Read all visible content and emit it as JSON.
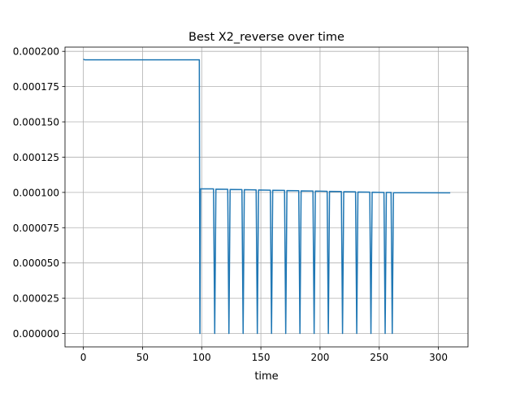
{
  "chart_data": {
    "type": "line",
    "title": "Best X2_reverse over time",
    "xlabel": "time",
    "ylabel": "",
    "xlim": [
      -15.5,
      325
    ],
    "ylim": [
      -9.5e-06,
      0.000203
    ],
    "x_ticks": [
      0,
      50,
      100,
      150,
      200,
      250,
      300
    ],
    "y_ticks": [
      0,
      2.5e-05,
      5e-05,
      7.5e-05,
      0.0001,
      0.000125,
      0.00015,
      0.000175,
      0.0002
    ],
    "x_tick_labels": [
      "0",
      "50",
      "100",
      "150",
      "200",
      "250",
      "300"
    ],
    "y_tick_labels": [
      "0.000000",
      "0.000025",
      "0.000050",
      "0.000075",
      "0.000100",
      "0.000125",
      "0.000150",
      "0.000175",
      "0.000200"
    ],
    "grid": true,
    "series": [
      {
        "color": "#1f77b4",
        "x": [
          0,
          1,
          98,
          98.5,
          99,
          100,
          110,
          111,
          112,
          122,
          123,
          124,
          134,
          135,
          136,
          146,
          147,
          148,
          158,
          159,
          160,
          170,
          171,
          172,
          182,
          183,
          184,
          194,
          195,
          196,
          206,
          207,
          208,
          218,
          219,
          220,
          230,
          231,
          232,
          242,
          243,
          244,
          254,
          255,
          256,
          260,
          261,
          262,
          310
        ],
        "y": [
          0.0001945,
          0.000194,
          0.000194,
          0,
          0.0001025,
          0.0001025,
          0.0001025,
          0,
          0.0001023,
          0.0001022,
          0,
          0.0001021,
          0.000102,
          0,
          0.0001019,
          0.0001018,
          0,
          0.0001017,
          0.0001016,
          0,
          0.0001015,
          0.0001014,
          0,
          0.0001013,
          0.0001012,
          0,
          0.0001011,
          0.000101,
          0,
          0.0001009,
          0.0001008,
          0,
          0.0001007,
          0.0001006,
          0,
          0.0001005,
          0.0001004,
          0,
          0.0001003,
          0.0001002,
          0,
          0.0001001,
          0.0001,
          0,
          0.0001,
          0.0001,
          0,
          9.98e-05,
          9.97e-05
        ]
      }
    ]
  }
}
